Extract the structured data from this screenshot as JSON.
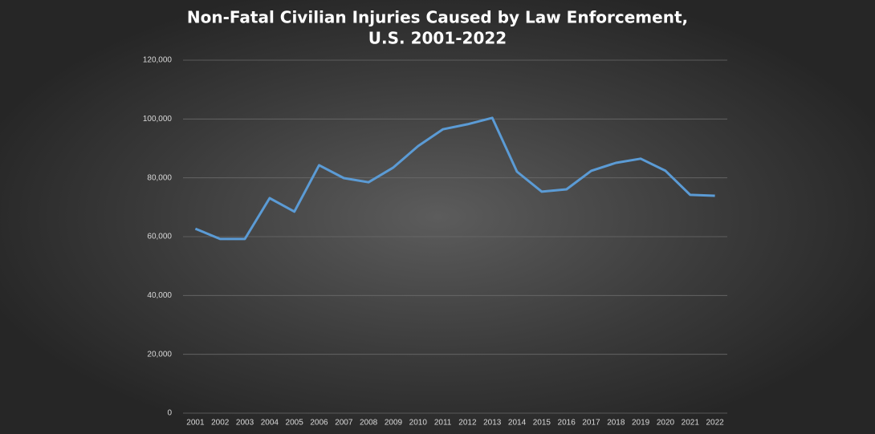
{
  "chart_data": {
    "type": "line",
    "title": [
      "Non-Fatal Civilian Injuries Caused by Law Enforcement,",
      "U.S. 2001-2022"
    ],
    "categories": [
      "2001",
      "2002",
      "2003",
      "2004",
      "2005",
      "2006",
      "2007",
      "2008",
      "2009",
      "2010",
      "2011",
      "2012",
      "2013",
      "2014",
      "2015",
      "2016",
      "2017",
      "2018",
      "2019",
      "2020",
      "2021",
      "2022"
    ],
    "series": [
      {
        "name": "Non-Fatal Civilian Injuries",
        "color": "#5b9bd5",
        "values": [
          62700,
          59200,
          59200,
          73100,
          68500,
          84300,
          79900,
          78500,
          83500,
          90800,
          96500,
          98200,
          100400,
          82100,
          75300,
          76100,
          82400,
          85100,
          86500,
          82400,
          74200,
          73900
        ]
      }
    ],
    "ylim": [
      0,
      120000
    ],
    "yticks": [
      0,
      {
        "value": 20000,
        "label": "20,000"
      },
      {
        "value": 40000,
        "label": "40,000"
      },
      {
        "value": 60000,
        "label": "60,000"
      },
      {
        "value": 80000,
        "label": "80,000"
      },
      {
        "value": 100000,
        "label": "100,000"
      },
      {
        "value": 120000,
        "label": "120,000"
      }
    ],
    "grid": true
  }
}
